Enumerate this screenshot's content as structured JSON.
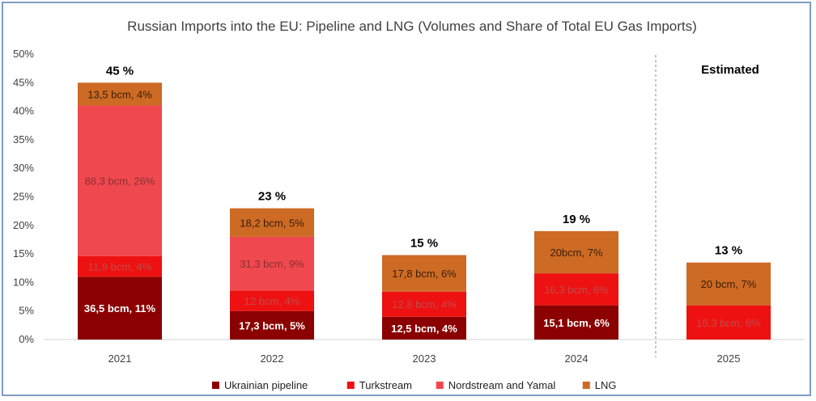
{
  "chart_data": {
    "type": "bar",
    "stacked": true,
    "title": "Russian Imports into the EU: Pipeline and LNG (Volumes and Share of Total EU Gas Imports)",
    "categories": [
      "2021",
      "2022",
      "2023",
      "2024",
      "2025"
    ],
    "ylim": [
      0,
      50
    ],
    "yticks": [
      "0%",
      "5%",
      "10%",
      "15%",
      "20%",
      "25%",
      "30%",
      "35%",
      "40%",
      "45%",
      "50%"
    ],
    "grid": false,
    "legend_position": "bottom",
    "annotation": "Estimated",
    "totals": [
      "45 %",
      "23 %",
      "15 %",
      "19 %",
      "13 %"
    ],
    "series": [
      {
        "name": "Ukrainian pipeline",
        "color": "#8b0000",
        "values": [
          11,
          5,
          4,
          6,
          0
        ],
        "labels": [
          "36,5 bcm, 11%",
          "17,3 bcm, 5%",
          "12,5 bcm, 4%",
          "15,1 bcm, 6%",
          ""
        ],
        "label_color": "#ffffff",
        "label_bold": true
      },
      {
        "name": "Turkstream",
        "color": "#ee1111",
        "values": [
          3.6,
          3.6,
          4.4,
          5.6,
          6
        ],
        "labels": [
          "11,9 bcm, 4%",
          "12 bcm, 4%",
          "12,8 bcm, 4%",
          "16,3 bcm, 6%",
          "16,3 bcm, 6%"
        ],
        "label_color": "#c24a4a",
        "label_bold": false
      },
      {
        "name": "Nordstream and Yamal",
        "color": "#f0484f",
        "values": [
          26.4,
          9.4,
          0,
          0,
          0
        ],
        "labels": [
          "88,3 bcm, 26%",
          "31,3 bcm, 9%",
          "",
          "",
          ""
        ],
        "label_color": "#8a3030",
        "label_bold": false
      },
      {
        "name": "LNG",
        "color": "#cd6a24",
        "values": [
          4,
          5,
          6.4,
          7.4,
          7.5
        ],
        "labels": [
          "13,5 bcm, 4%",
          "18,2 bcm, 5%",
          "17,8 bcm, 6%",
          "20bcm, 7%",
          "20 bcm, 7%"
        ],
        "label_color": "#3a1e0a",
        "label_bold": false
      }
    ]
  }
}
